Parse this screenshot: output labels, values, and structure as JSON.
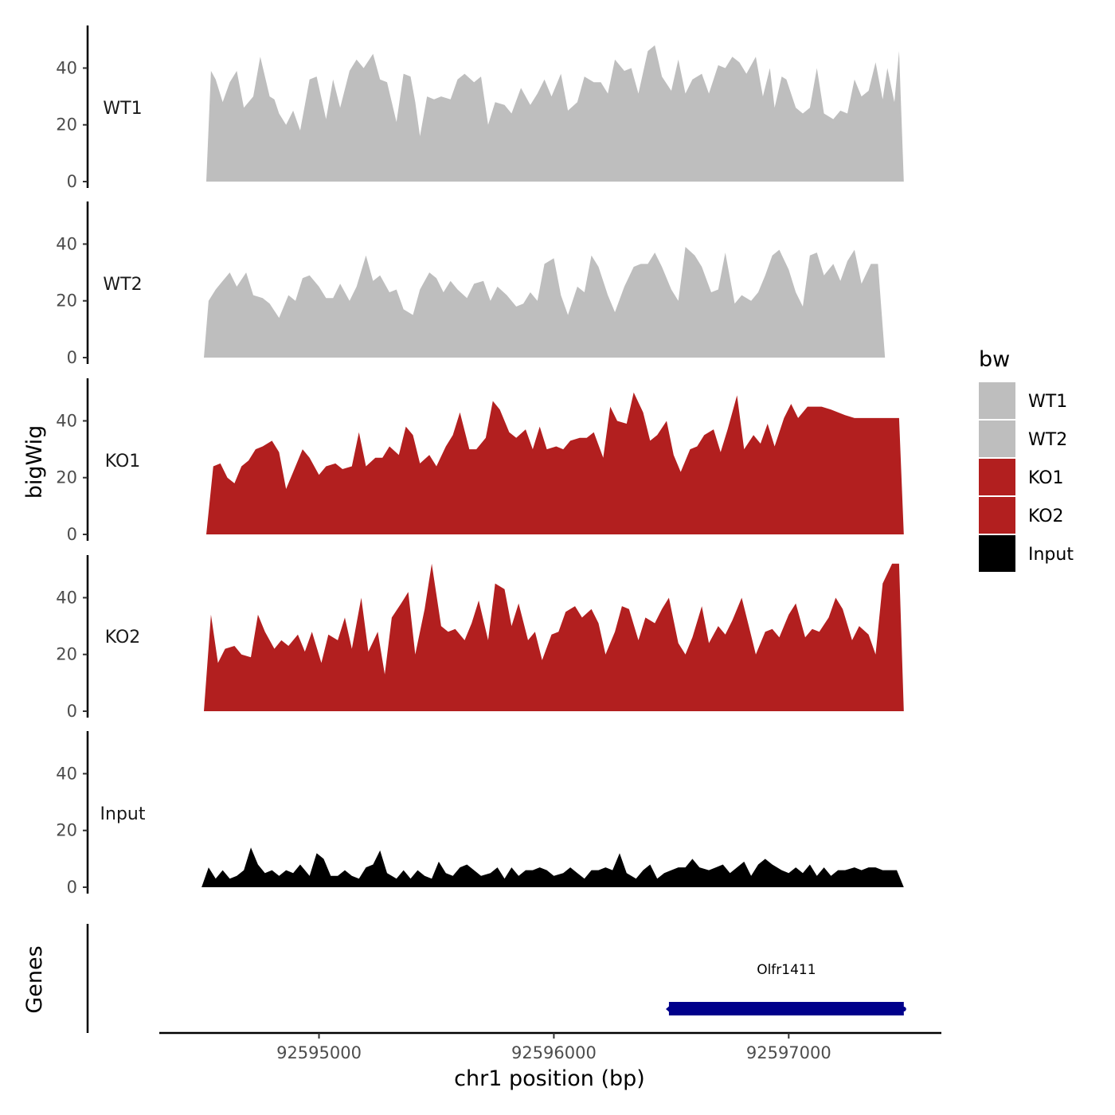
{
  "chart_data": {
    "type": "area",
    "title": "",
    "xlabel": "chr1 position (bp)",
    "ylabel": "bigWig",
    "xlim": [
      92594320,
      92597650
    ],
    "ylim": [
      0,
      55
    ],
    "x_ticks": [
      92595000,
      92596000,
      92597000
    ],
    "x_tick_labels": [
      "92595000",
      "92596000",
      "92597000"
    ],
    "y_ticks": [
      0,
      20,
      40
    ],
    "y_tick_labels": [
      "0",
      "20",
      "40"
    ],
    "grid": false,
    "legend": {
      "title": "bw",
      "position": "right",
      "entries": [
        {
          "label": "WT1",
          "color": "#bebebe"
        },
        {
          "label": "WT2",
          "color": "#bebebe"
        },
        {
          "label": "KO1",
          "color": "#b21f1f"
        },
        {
          "label": "KO2",
          "color": "#b21f1f"
        },
        {
          "label": "Input",
          "color": "#000000"
        }
      ]
    },
    "series": [
      {
        "name": "WT1",
        "color": "#bebebe",
        "x": [
          92594520,
          92594540,
          92594560,
          92594590,
          92594620,
          92594650,
          92594680,
          92594720,
          92594750,
          92594790,
          92594810,
          92594830,
          92594860,
          92594890,
          92594920,
          92594960,
          92594990,
          92595030,
          92595060,
          92595090,
          92595130,
          92595160,
          92595190,
          92595230,
          92595260,
          92595290,
          92595330,
          92595360,
          92595390,
          92595410,
          92595430,
          92595460,
          92595490,
          92595520,
          92595560,
          92595590,
          92595620,
          92595660,
          92595690,
          92595720,
          92595750,
          92595790,
          92595820,
          92595860,
          92595900,
          92595930,
          92595960,
          92595990,
          92596030,
          92596060,
          92596100,
          92596130,
          92596170,
          92596200,
          92596230,
          92596260,
          92596300,
          92596330,
          92596360,
          92596400,
          92596430,
          92596460,
          92596500,
          92596530,
          92596560,
          92596590,
          92596630,
          92596660,
          92596700,
          92596730,
          92596760,
          92596790,
          92596820,
          92596860,
          92596890,
          92596920,
          92596940,
          92596970,
          92596990,
          92597030,
          92597060,
          92597090,
          92597120,
          92597150,
          92597190,
          92597220,
          92597250,
          92597280,
          92597310,
          92597340,
          92597370,
          92597400,
          92597420,
          92597450,
          92597470,
          92597490
        ],
        "y": [
          0,
          39,
          36,
          28,
          35,
          39,
          26,
          30,
          44,
          30,
          29,
          24,
          20,
          25,
          18,
          36,
          37,
          22,
          36,
          26,
          39,
          43,
          40,
          45,
          36,
          35,
          21,
          38,
          37,
          28,
          16,
          30,
          29,
          30,
          29,
          36,
          38,
          35,
          37,
          20,
          28,
          27,
          24,
          33,
          27,
          31,
          36,
          30,
          38,
          25,
          28,
          37,
          35,
          35,
          31,
          43,
          39,
          40,
          31,
          46,
          48,
          37,
          32,
          43,
          31,
          36,
          38,
          31,
          41,
          40,
          44,
          42,
          38,
          44,
          30,
          40,
          26,
          37,
          36,
          26,
          24,
          26,
          40,
          24,
          22,
          25,
          24,
          36,
          30,
          32,
          42,
          29,
          40,
          28,
          46,
          0
        ]
      },
      {
        "name": "WT2",
        "color": "#bebebe",
        "x": [
          92594510,
          92594530,
          92594560,
          92594590,
          92594620,
          92594650,
          92594690,
          92594720,
          92594760,
          92594790,
          92594830,
          92594870,
          92594900,
          92594930,
          92594960,
          92595000,
          92595030,
          92595060,
          92595090,
          92595130,
          92595160,
          92595200,
          92595230,
          92595260,
          92595300,
          92595330,
          92595360,
          92595400,
          92595430,
          92595470,
          92595500,
          92595530,
          92595560,
          92595590,
          92595630,
          92595660,
          92595700,
          92595730,
          92595760,
          92595800,
          92595840,
          92595870,
          92595900,
          92595930,
          92595960,
          92596000,
          92596030,
          92596060,
          92596100,
          92596130,
          92596160,
          92596190,
          92596230,
          92596260,
          92596300,
          92596340,
          92596370,
          92596400,
          92596430,
          92596460,
          92596500,
          92596530,
          92596560,
          92596600,
          92596630,
          92596670,
          92596700,
          92596730,
          92596770,
          92596800,
          92596840,
          92596870,
          92596900,
          92596930,
          92596960,
          92597000,
          92597030,
          92597060,
          92597090,
          92597120,
          92597150,
          92597190,
          92597220,
          92597250,
          92597280,
          92597310,
          92597350,
          92597380,
          92597410,
          92597440,
          92597470,
          92597490
        ],
        "y": [
          0,
          20,
          24,
          27,
          30,
          25,
          30,
          22,
          21,
          19,
          14,
          22,
          20,
          28,
          29,
          25,
          21,
          21,
          26,
          20,
          25,
          36,
          27,
          29,
          23,
          24,
          17,
          15,
          24,
          30,
          28,
          23,
          27,
          24,
          21,
          26,
          27,
          20,
          25,
          22,
          18,
          19,
          23,
          20,
          33,
          35,
          22,
          15,
          25,
          23,
          36,
          32,
          22,
          16,
          25,
          32,
          33,
          33,
          37,
          32,
          24,
          20,
          39,
          36,
          32,
          23,
          24,
          37,
          19,
          22,
          20,
          23,
          29,
          36,
          38,
          31,
          23,
          18,
          36,
          37,
          29,
          33,
          27,
          34,
          38,
          26,
          33,
          33,
          0,
          0,
          0,
          0
        ],
        "note": ""
      },
      {
        "name": "KO1",
        "color": "#b21f1f",
        "x": [
          92594520,
          92594550,
          92594580,
          92594610,
          92594640,
          92594670,
          92594700,
          92594730,
          92594760,
          92594800,
          92594830,
          92594860,
          92594890,
          92594930,
          92594960,
          92595000,
          92595030,
          92595070,
          92595100,
          92595140,
          92595170,
          92595200,
          92595240,
          92595270,
          92595300,
          92595340,
          92595370,
          92595400,
          92595430,
          92595470,
          92595500,
          92595540,
          92595570,
          92595600,
          92595640,
          92595670,
          92595710,
          92595740,
          92595770,
          92595810,
          92595840,
          92595880,
          92595910,
          92595940,
          92595970,
          92596010,
          92596040,
          92596070,
          92596110,
          92596140,
          92596170,
          92596210,
          92596240,
          92596270,
          92596310,
          92596340,
          92596380,
          92596410,
          92596440,
          92596480,
          92596510,
          92596540,
          92596580,
          92596610,
          92596640,
          92596680,
          92596710,
          92596740,
          92596780,
          92596810,
          92596850,
          92596880,
          92596910,
          92596940,
          92596980,
          92597010,
          92597040,
          92597080,
          92597110,
          92597140,
          92597180,
          92597210,
          92597240,
          92597280,
          92597310,
          92597340,
          92597380,
          92597410,
          92597440,
          92597470,
          92597490
        ],
        "y": [
          0,
          24,
          25,
          20,
          18,
          24,
          26,
          30,
          31,
          33,
          29,
          16,
          22,
          30,
          27,
          21,
          24,
          25,
          23,
          24,
          36,
          24,
          27,
          27,
          31,
          28,
          38,
          35,
          25,
          28,
          24,
          31,
          35,
          43,
          30,
          30,
          34,
          47,
          44,
          36,
          34,
          37,
          30,
          38,
          30,
          31,
          30,
          33,
          34,
          34,
          36,
          27,
          45,
          40,
          39,
          50,
          43,
          33,
          35,
          40,
          28,
          22,
          30,
          31,
          35,
          37,
          29,
          37,
          49,
          30,
          35,
          32,
          39,
          31,
          41,
          46,
          41,
          45,
          45,
          45,
          44,
          43,
          42,
          41,
          41,
          41,
          41,
          41,
          41,
          41,
          0
        ]
      },
      {
        "name": "KO2",
        "color": "#b21f1f",
        "x": [
          92594510,
          92594540,
          92594570,
          92594600,
          92594640,
          92594670,
          92594710,
          92594740,
          92594770,
          92594810,
          92594840,
          92594870,
          92594910,
          92594940,
          92594970,
          92595010,
          92595040,
          92595080,
          92595110,
          92595140,
          92595180,
          92595210,
          92595250,
          92595280,
          92595310,
          92595350,
          92595380,
          92595410,
          92595450,
          92595480,
          92595520,
          92595550,
          92595580,
          92595620,
          92595650,
          92595680,
          92595720,
          92595750,
          92595790,
          92595820,
          92595850,
          92595890,
          92595920,
          92595950,
          92595990,
          92596020,
          92596050,
          92596090,
          92596120,
          92596160,
          92596190,
          92596220,
          92596260,
          92596290,
          92596320,
          92596360,
          92596390,
          92596430,
          92596460,
          92596490,
          92596530,
          92596560,
          92596590,
          92596630,
          92596660,
          92596700,
          92596730,
          92596760,
          92596800,
          92596830,
          92596860,
          92596900,
          92596930,
          92596960,
          92597000,
          92597030,
          92597070,
          92597100,
          92597130,
          92597170,
          92597200,
          92597230,
          92597270,
          92597300,
          92597340,
          92597370,
          92597400,
          92597440,
          92597470,
          92597490
        ],
        "y": [
          0,
          34,
          17,
          22,
          23,
          20,
          19,
          34,
          28,
          22,
          25,
          23,
          27,
          21,
          28,
          17,
          27,
          25,
          33,
          22,
          40,
          21,
          28,
          13,
          33,
          38,
          42,
          20,
          36,
          52,
          30,
          28,
          29,
          25,
          31,
          39,
          25,
          45,
          43,
          30,
          38,
          25,
          28,
          18,
          27,
          28,
          35,
          37,
          33,
          36,
          31,
          20,
          28,
          37,
          36,
          25,
          33,
          31,
          36,
          40,
          24,
          20,
          26,
          37,
          24,
          30,
          27,
          32,
          40,
          30,
          20,
          28,
          29,
          26,
          34,
          38,
          26,
          29,
          28,
          33,
          40,
          36,
          25,
          30,
          27,
          20,
          45,
          52,
          52,
          0
        ]
      },
      {
        "name": "Input",
        "color": "#000000",
        "x": [
          92594500,
          92594530,
          92594560,
          92594590,
          92594620,
          92594650,
          92594680,
          92594710,
          92594740,
          92594770,
          92594800,
          92594830,
          92594860,
          92594890,
          92594920,
          92594960,
          92594990,
          92595020,
          92595050,
          92595080,
          92595110,
          92595140,
          92595170,
          92595200,
          92595230,
          92595260,
          92595290,
          92595330,
          92595360,
          92595390,
          92595420,
          92595450,
          92595480,
          92595510,
          92595540,
          92595570,
          92595600,
          92595630,
          92595660,
          92595690,
          92595730,
          92595760,
          92595790,
          92595820,
          92595850,
          92595880,
          92595910,
          92595940,
          92595970,
          92596000,
          92596040,
          92596070,
          92596100,
          92596130,
          92596160,
          92596190,
          92596220,
          92596250,
          92596280,
          92596310,
          92596350,
          92596380,
          92596410,
          92596440,
          92596470,
          92596500,
          92596530,
          92596560,
          92596590,
          92596620,
          92596660,
          92596690,
          92596720,
          92596750,
          92596780,
          92596810,
          92596840,
          92596870,
          92596900,
          92596930,
          92596970,
          92597000,
          92597030,
          92597060,
          92597090,
          92597120,
          92597150,
          92597180,
          92597210,
          92597240,
          92597280,
          92597310,
          92597340,
          92597370,
          92597400,
          92597430,
          92597460,
          92597490
        ],
        "y": [
          0,
          7,
          3,
          6,
          3,
          4,
          6,
          14,
          8,
          5,
          6,
          4,
          6,
          5,
          8,
          4,
          12,
          10,
          4,
          4,
          6,
          4,
          3,
          7,
          8,
          13,
          5,
          3,
          6,
          3,
          6,
          4,
          3,
          9,
          5,
          4,
          7,
          8,
          6,
          4,
          5,
          7,
          3,
          7,
          4,
          6,
          6,
          7,
          6,
          4,
          5,
          7,
          5,
          3,
          6,
          6,
          7,
          6,
          12,
          5,
          3,
          6,
          8,
          3,
          5,
          6,
          7,
          7,
          10,
          7,
          6,
          7,
          8,
          5,
          7,
          9,
          4,
          8,
          10,
          8,
          6,
          5,
          7,
          5,
          8,
          4,
          7,
          4,
          6,
          6,
          7,
          6,
          7,
          7,
          6,
          6,
          6,
          0
        ],
        "note": ""
      }
    ],
    "genes": {
      "ylabel": "Genes",
      "items": [
        {
          "name": "Olfr1411",
          "start": 92596490,
          "end": 92597490,
          "strand": "-",
          "color": "#00008b"
        }
      ]
    }
  }
}
